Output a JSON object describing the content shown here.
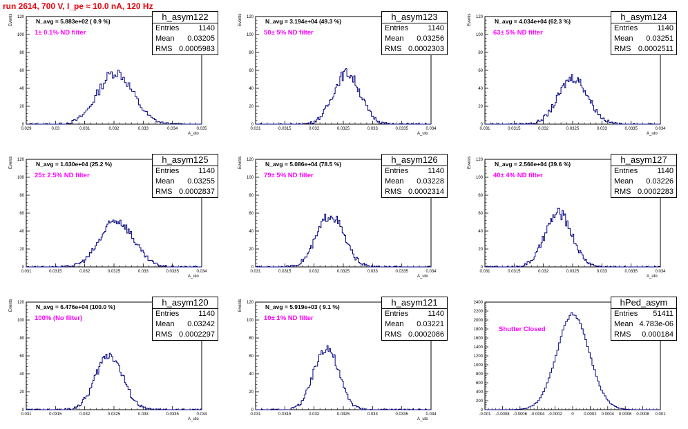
{
  "header": {
    "run_title": "run 2614,   700 V, I_pe ≈ 10.0 nA, 120 Hz"
  },
  "chart_data": [
    {
      "type": "bar",
      "title": "h_asym122",
      "xlabel": "A_uto",
      "ylabel": "Events",
      "xlim": [
        0.029,
        0.035
      ],
      "ylim": [
        0,
        120
      ],
      "xticks": [
        "0.029",
        "0.03",
        "0.031",
        "0.032",
        "0.033",
        "0.034",
        "0.035"
      ],
      "yticks": [
        "0",
        "20",
        "40",
        "60",
        "80",
        "100",
        "120"
      ],
      "annotation": "N_avg = 5.883e+02 ( 0.9 %)",
      "filter_label": "1± 0.1% ND filter",
      "stats": {
        "entries_label": "Entries",
        "entries": "1140",
        "mean_label": "Mean",
        "mean": "0.03205",
        "rms_label": "RMS",
        "rms": "0.0005983"
      },
      "mean": 0.03205,
      "sigma": 0.0005983,
      "peak": 58,
      "binwidth": 6e-05
    },
    {
      "type": "bar",
      "title": "h_asym123",
      "xlabel": "A_uto",
      "ylabel": "Events",
      "xlim": [
        0.031,
        0.034
      ],
      "ylim": [
        0,
        120
      ],
      "xticks": [
        "0.031",
        "0.0315",
        "0.032",
        "0.0325",
        "0.033",
        "0.0335",
        "0.034"
      ],
      "yticks": [
        "0",
        "20",
        "40",
        "60",
        "80",
        "100",
        "120"
      ],
      "annotation": "N_avg = 3.194e+04 (49.3 %)",
      "filter_label": "50± 5% ND filter",
      "stats": {
        "entries_label": "Entries",
        "entries": "1140",
        "mean_label": "Mean",
        "mean": "0.03256",
        "rms_label": "RMS",
        "rms": "0.0002303"
      },
      "mean": 0.03256,
      "sigma": 0.0002303,
      "peak": 57,
      "binwidth": 2e-05
    },
    {
      "type": "bar",
      "title": "h_asym124",
      "xlabel": "A_uto",
      "ylabel": "Events",
      "xlim": [
        0.031,
        0.034
      ],
      "ylim": [
        0,
        120
      ],
      "xticks": [
        "0.031",
        "0.0315",
        "0.032",
        "0.0325",
        "0.033",
        "0.0335",
        "0.034"
      ],
      "yticks": [
        "0",
        "20",
        "40",
        "60",
        "80",
        "100",
        "120"
      ],
      "annotation": "N_avg = 4.034e+04 (62.3 %)",
      "filter_label": "63± 5% ND filter",
      "stats": {
        "entries_label": "Entries",
        "entries": "1140",
        "mean_label": "Mean",
        "mean": "0.03251",
        "rms_label": "RMS",
        "rms": "0.0002511"
      },
      "mean": 0.03251,
      "sigma": 0.0002511,
      "peak": 52,
      "binwidth": 2e-05
    },
    {
      "type": "bar",
      "title": "h_asym125",
      "xlabel": "A_uto",
      "ylabel": "Events",
      "xlim": [
        0.031,
        0.034
      ],
      "ylim": [
        0,
        120
      ],
      "xticks": [
        "0.031",
        "0.0315",
        "0.032",
        "0.0325",
        "0.033",
        "0.0335",
        "0.034"
      ],
      "yticks": [
        "0",
        "20",
        "40",
        "60",
        "80",
        "100",
        "120"
      ],
      "annotation": "N_avg = 1.630e+04 (25.2 %)",
      "filter_label": "25± 2.5% ND filter",
      "stats": {
        "entries_label": "Entries",
        "entries": "1140",
        "mean_label": "Mean",
        "mean": "0.03255",
        "rms_label": "RMS",
        "rms": "0.0002837"
      },
      "mean": 0.03255,
      "sigma": 0.0002837,
      "peak": 52,
      "binwidth": 2e-05
    },
    {
      "type": "bar",
      "title": "h_asym126",
      "xlabel": "A_uto",
      "ylabel": "Events",
      "xlim": [
        0.031,
        0.034
      ],
      "ylim": [
        0,
        120
      ],
      "xticks": [
        "0.031",
        "0.0315",
        "0.032",
        "0.0325",
        "0.033",
        "0.0335",
        "0.034"
      ],
      "yticks": [
        "0",
        "20",
        "40",
        "60",
        "80",
        "100",
        "120"
      ],
      "annotation": "N_avg = 5.086e+04 (78.5 %)",
      "filter_label": "79± 5% ND filter",
      "stats": {
        "entries_label": "Entries",
        "entries": "1140",
        "mean_label": "Mean",
        "mean": "0.03228",
        "rms_label": "RMS",
        "rms": "0.0002314"
      },
      "mean": 0.03228,
      "sigma": 0.0002314,
      "peak": 58,
      "binwidth": 2e-05
    },
    {
      "type": "bar",
      "title": "h_asym127",
      "xlabel": "A_uto",
      "ylabel": "Events",
      "xlim": [
        0.031,
        0.034
      ],
      "ylim": [
        0,
        120
      ],
      "xticks": [
        "0.031",
        "0.0315",
        "0.032",
        "0.0325",
        "0.033",
        "0.0335",
        "0.034"
      ],
      "yticks": [
        "0",
        "20",
        "40",
        "60",
        "80",
        "100",
        "120"
      ],
      "annotation": "N_avg = 2.566e+04 (39.6 %)",
      "filter_label": "40± 4% ND filter",
      "stats": {
        "entries_label": "Entries",
        "entries": "1140",
        "mean_label": "Mean",
        "mean": "0.03226",
        "rms_label": "RMS",
        "rms": "0.0002283"
      },
      "mean": 0.03226,
      "sigma": 0.0002283,
      "peak": 60,
      "binwidth": 2e-05
    },
    {
      "type": "bar",
      "title": "h_asym120",
      "xlabel": "A_uto",
      "ylabel": "Events",
      "xlim": [
        0.031,
        0.034
      ],
      "ylim": [
        0,
        120
      ],
      "xticks": [
        "0.031",
        "0.0315",
        "0.032",
        "0.0325",
        "0.033",
        "0.0335",
        "0.034"
      ],
      "yticks": [
        "0",
        "20",
        "40",
        "60",
        "80",
        "100",
        "120"
      ],
      "annotation": "N_avg = 6.476e+04 (100.0 %)",
      "filter_label": "100% (No filter)",
      "stats": {
        "entries_label": "Entries",
        "entries": "1140",
        "mean_label": "Mean",
        "mean": "0.03242",
        "rms_label": "RMS",
        "rms": "0.0002297"
      },
      "mean": 0.03242,
      "sigma": 0.0002297,
      "peak": 62,
      "binwidth": 2e-05
    },
    {
      "type": "bar",
      "title": "h_asym121",
      "xlabel": "A_uto",
      "ylabel": "Events",
      "xlim": [
        0.031,
        0.034
      ],
      "ylim": [
        0,
        120
      ],
      "xticks": [
        "0.031",
        "0.0315",
        "0.032",
        "0.0325",
        "0.033",
        "0.0335",
        "0.034"
      ],
      "yticks": [
        "0",
        "20",
        "40",
        "60",
        "80",
        "100",
        "120"
      ],
      "annotation": "N_avg = 5.919e+03 ( 9.1 %)",
      "filter_label": "10± 1% ND filter",
      "stats": {
        "entries_label": "Entries",
        "entries": "1140",
        "mean_label": "Mean",
        "mean": "0.03221",
        "rms_label": "RMS",
        "rms": "0.0002086"
      },
      "mean": 0.03221,
      "sigma": 0.0002086,
      "peak": 70,
      "binwidth": 2e-05
    },
    {
      "type": "bar",
      "title": "hPed_asym",
      "xlabel": "",
      "ylabel": "",
      "xlim": [
        -0.001,
        0.001
      ],
      "ylim": [
        0,
        2400
      ],
      "xticks": [
        "-0.001",
        "-0.0008",
        "-0.0006",
        "-0.0004",
        "-0.0002",
        "0",
        "0.0002",
        "0.0004",
        "0.0006",
        "0.0008",
        "0.001"
      ],
      "yticks": [
        "0",
        "200",
        "400",
        "600",
        "800",
        "1000",
        "1200",
        "1400",
        "1600",
        "1800",
        "2000",
        "2200",
        "2400"
      ],
      "annotation": "",
      "filter_label": "Shutter Closed",
      "stats": {
        "entries_label": "Entries",
        "entries": "51411",
        "mean_label": "Mean",
        "mean": "4.783e-06",
        "rms_label": "RMS",
        "rms": "0.000184"
      },
      "mean": 4.783e-06,
      "sigma": 0.000184,
      "peak": 2130,
      "binwidth": 2e-05
    }
  ]
}
